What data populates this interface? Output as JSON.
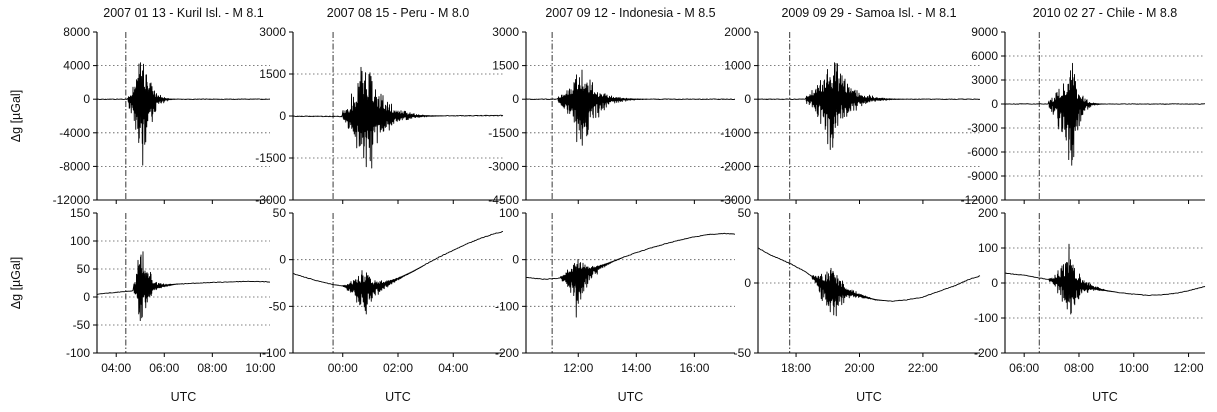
{
  "chart_data": {
    "type": "line",
    "ylabel": "Δg [µGal]",
    "xlabel": "UTC",
    "grid": "horizontal dotted",
    "columns": [
      {
        "title": "2007 01 13 - Kuril Isl. - M 8.1",
        "event_time_hours": 4.4,
        "x_range_hours": [
          3.2,
          10.4
        ],
        "x_ticks": [
          4,
          6,
          8,
          10
        ],
        "x_tick_labels": [
          "04:00",
          "06:00",
          "08:00",
          "10:00"
        ],
        "top": {
          "ylim": [
            -12000,
            8000
          ],
          "y_ticks": [
            -12000,
            -8000,
            -4000,
            0,
            4000,
            8000
          ],
          "y_tick_labels": [
            "-12000",
            "-8000",
            "-4000",
            "0",
            "4000",
            "8000"
          ],
          "series": {
            "baseline": [
              [
                3.2,
                0
              ],
              [
                4.6,
                0
              ],
              [
                5.1,
                0
              ],
              [
                6.0,
                0
              ],
              [
                8.0,
                0
              ],
              [
                10.4,
                0
              ]
            ],
            "burst": {
              "t0": 4.45,
              "t_peak": 5.1,
              "t_end": 6.6,
              "max": 7400,
              "min": -12000
            }
          }
        },
        "bottom": {
          "ylim": [
            -100,
            150
          ],
          "y_ticks": [
            -100,
            -50,
            0,
            50,
            100,
            150
          ],
          "y_tick_labels": [
            "-100",
            "-50",
            "0",
            "50",
            "100",
            "150"
          ],
          "series": {
            "baseline": [
              [
                3.2,
                5
              ],
              [
                4.4,
                10
              ],
              [
                4.9,
                12
              ],
              [
                5.5,
                18
              ],
              [
                6.5,
                23
              ],
              [
                8.0,
                26
              ],
              [
                9.5,
                28
              ],
              [
                10.4,
                27
              ]
            ],
            "burst": {
              "t0": 4.7,
              "t_peak": 5.0,
              "t_end": 6.8,
              "max": 125,
              "min": -60
            }
          }
        }
      },
      {
        "title": "2007 08 15 - Peru - M 8.0",
        "event_time_hours": -0.35,
        "x_range_hours": [
          -1.8,
          5.8
        ],
        "x_ticks": [
          0,
          2,
          4
        ],
        "x_tick_labels": [
          "00:00",
          "02:00",
          "04:00"
        ],
        "top": {
          "ylim": [
            -3000,
            3000
          ],
          "y_ticks": [
            -3000,
            -1500,
            0,
            1500,
            3000
          ],
          "y_tick_labels": [
            "-3000",
            "-1500",
            "0",
            "1500",
            "3000"
          ],
          "series": {
            "baseline": [
              [
                -1.8,
                -10
              ],
              [
                0.0,
                -20
              ],
              [
                1.0,
                0
              ],
              [
                3.0,
                0
              ],
              [
                5.8,
                20
              ]
            ],
            "burst": {
              "t0": 0.0,
              "t_peak": 0.8,
              "t_end": 3.8,
              "max": 3000,
              "min": -2800
            }
          }
        },
        "bottom": {
          "ylim": [
            -100,
            50
          ],
          "y_ticks": [
            -100,
            -50,
            0,
            50
          ],
          "y_tick_labels": [
            "-100",
            "-50",
            "0",
            "50"
          ],
          "series": {
            "baseline": [
              [
                -1.8,
                -15
              ],
              [
                -1.0,
                -22
              ],
              [
                -0.3,
                -27
              ],
              [
                0.5,
                -30
              ],
              [
                1.0,
                -30
              ],
              [
                1.5,
                -26
              ],
              [
                2.0,
                -20
              ],
              [
                2.5,
                -13
              ],
              [
                3.0,
                -5
              ],
              [
                3.5,
                3
              ],
              [
                4.0,
                10
              ],
              [
                4.5,
                17
              ],
              [
                5.0,
                23
              ],
              [
                5.5,
                28
              ],
              [
                5.8,
                30
              ]
            ],
            "burst": {
              "t0": 0.0,
              "t_peak": 0.8,
              "t_end": 3.0,
              "max": -5,
              "min": -65
            }
          }
        }
      },
      {
        "title": "2007 09 12 - Indonesia - M 8.5",
        "event_time_hours": 11.1,
        "x_range_hours": [
          10.2,
          17.4
        ],
        "x_ticks": [
          12,
          14,
          16
        ],
        "x_tick_labels": [
          "12:00",
          "14:00",
          "16:00"
        ],
        "top": {
          "ylim": [
            -4500,
            3000
          ],
          "y_ticks": [
            -4500,
            -3000,
            -1500,
            0,
            1500,
            3000
          ],
          "y_tick_labels": [
            "-4500",
            "-3000",
            "-1500",
            "0",
            "1500",
            "3000"
          ],
          "series": {
            "baseline": [
              [
                10.2,
                0
              ],
              [
                11.3,
                0
              ],
              [
                12.0,
                0
              ],
              [
                14.0,
                0
              ],
              [
                17.4,
                0
              ]
            ],
            "burst": {
              "t0": 11.3,
              "t_peak": 12.1,
              "t_end": 14.6,
              "max": 1900,
              "min": -3400
            }
          }
        },
        "bottom": {
          "ylim": [
            -200,
            100
          ],
          "y_ticks": [
            -200,
            -100,
            0,
            100
          ],
          "y_tick_labels": [
            "-200",
            "-100",
            "0",
            "100"
          ],
          "series": {
            "baseline": [
              [
                10.2,
                -38
              ],
              [
                10.8,
                -42
              ],
              [
                11.3,
                -40
              ],
              [
                12.0,
                -30
              ],
              [
                12.5,
                -20
              ],
              [
                13.0,
                -8
              ],
              [
                13.5,
                4
              ],
              [
                14.0,
                15
              ],
              [
                14.5,
                25
              ],
              [
                15.0,
                34
              ],
              [
                15.5,
                42
              ],
              [
                16.0,
                49
              ],
              [
                16.5,
                54
              ],
              [
                17.0,
                56
              ],
              [
                17.4,
                55
              ]
            ],
            "burst": {
              "t0": 11.4,
              "t_peak": 12.0,
              "t_end": 13.6,
              "max": 20,
              "min": -155
            }
          }
        }
      },
      {
        "title": "2009 09 29 - Samoa Isl. - M 8.1",
        "event_time_hours": 17.8,
        "x_range_hours": [
          16.8,
          23.8
        ],
        "x_ticks": [
          18,
          20,
          22
        ],
        "x_tick_labels": [
          "18:00",
          "20:00",
          "22:00"
        ],
        "top": {
          "ylim": [
            -3000,
            2000
          ],
          "y_ticks": [
            -3000,
            -2000,
            -1000,
            0,
            1000,
            2000
          ],
          "y_tick_labels": [
            "-3000",
            "-2000",
            "-1000",
            "0",
            "1000",
            "2000"
          ],
          "series": {
            "baseline": [
              [
                16.8,
                0
              ],
              [
                18.0,
                0
              ],
              [
                20.0,
                0
              ],
              [
                23.8,
                0
              ]
            ],
            "burst": {
              "t0": 18.3,
              "t_peak": 19.1,
              "t_end": 21.6,
              "max": 1900,
              "min": -2000
            }
          }
        },
        "bottom": {
          "ylim": [
            -50,
            50
          ],
          "y_ticks": [
            -50,
            0,
            50
          ],
          "y_tick_labels": [
            "-50",
            "0",
            "50"
          ],
          "series": {
            "baseline": [
              [
                16.8,
                25
              ],
              [
                17.2,
                20
              ],
              [
                17.8,
                14
              ],
              [
                18.3,
                8
              ],
              [
                18.8,
                0
              ],
              [
                19.3,
                -5
              ],
              [
                20.0,
                -9
              ],
              [
                20.5,
                -12
              ],
              [
                21.0,
                -13
              ],
              [
                21.5,
                -12
              ],
              [
                22.0,
                -10
              ],
              [
                22.5,
                -6
              ],
              [
                23.0,
                -2
              ],
              [
                23.5,
                3
              ],
              [
                23.8,
                5
              ]
            ],
            "burst": {
              "t0": 18.5,
              "t_peak": 19.1,
              "t_end": 21.0,
              "max": 18,
              "min": -38
            }
          }
        }
      },
      {
        "title": "2010 02 27 - Chile - M 8.8",
        "event_time_hours": 6.55,
        "x_range_hours": [
          5.3,
          12.6
        ],
        "x_ticks": [
          6,
          8,
          10,
          12
        ],
        "x_tick_labels": [
          "06:00",
          "08:00",
          "10:00",
          "12:00"
        ],
        "top": {
          "ylim": [
            -12000,
            9000
          ],
          "y_ticks": [
            -12000,
            -9000,
            -6000,
            -3000,
            0,
            3000,
            6000,
            9000
          ],
          "y_tick_labels": [
            "-12000",
            "-9000",
            "-6000",
            "-3000",
            "0",
            "3000",
            "6000",
            "9000"
          ],
          "series": {
            "baseline": [
              [
                5.3,
                0
              ],
              [
                6.6,
                0
              ],
              [
                8.0,
                0
              ],
              [
                12.6,
                0
              ]
            ],
            "burst": {
              "t0": 6.9,
              "t_peak": 7.7,
              "t_end": 9.0,
              "max": 7300,
              "min": -10500
            }
          }
        },
        "bottom": {
          "ylim": [
            -200,
            200
          ],
          "y_ticks": [
            -200,
            -100,
            0,
            100,
            200
          ],
          "y_tick_labels": [
            "-200",
            "-100",
            "0",
            "100",
            "200"
          ],
          "series": {
            "baseline": [
              [
                5.3,
                28
              ],
              [
                6.0,
                22
              ],
              [
                6.6,
                14
              ],
              [
                7.2,
                5
              ],
              [
                7.8,
                -5
              ],
              [
                8.5,
                -15
              ],
              [
                9.0,
                -22
              ],
              [
                9.5,
                -28
              ],
              [
                10.0,
                -32
              ],
              [
                10.5,
                -35
              ],
              [
                11.0,
                -34
              ],
              [
                11.5,
                -30
              ],
              [
                12.0,
                -22
              ],
              [
                12.6,
                -10
              ]
            ],
            "burst": {
              "t0": 6.9,
              "t_peak": 7.7,
              "t_end": 9.5,
              "max": 135,
              "min": -130
            }
          }
        }
      }
    ]
  }
}
